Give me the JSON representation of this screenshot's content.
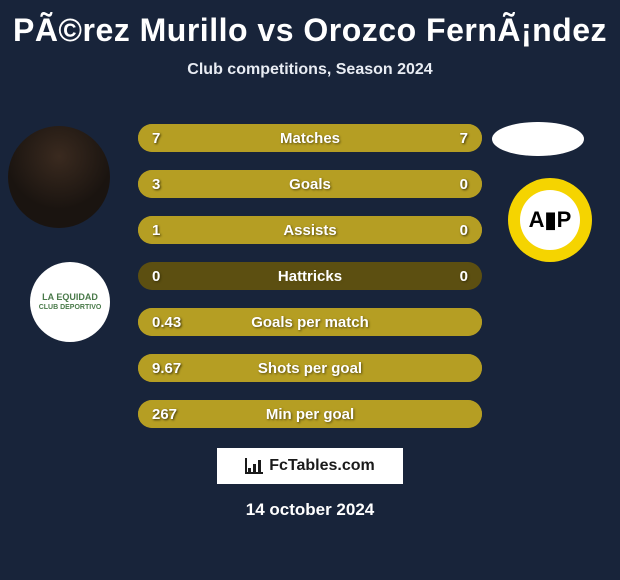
{
  "background_color": "#18243a",
  "title": "PÃ©rez Murillo vs Orozco FernÃ¡ndez",
  "subtitle": "Club competitions, Season 2024",
  "date": "14 october 2024",
  "footer_brand": "FcTables.com",
  "colors": {
    "bar_base": "#a08a1e",
    "bar_light": "#b59e23",
    "bar_dark": "#5c4f11",
    "text": "#ffffff"
  },
  "rows": [
    {
      "label": "Matches",
      "left": "7",
      "right": "7",
      "left_pct": 50,
      "right_pct": 50,
      "dual": true,
      "single_dark": false
    },
    {
      "label": "Goals",
      "left": "3",
      "right": "0",
      "left_pct": 100,
      "right_pct": 0,
      "dual": false,
      "single_dark": false
    },
    {
      "label": "Assists",
      "left": "1",
      "right": "0",
      "left_pct": 100,
      "right_pct": 0,
      "dual": false,
      "single_dark": false
    },
    {
      "label": "Hattricks",
      "left": "0",
      "right": "0",
      "left_pct": 0,
      "right_pct": 0,
      "dual": false,
      "single_dark": true
    },
    {
      "label": "Goals per match",
      "left": "0.43",
      "right": "",
      "left_pct": 100,
      "right_pct": 0,
      "dual": false,
      "single_dark": false
    },
    {
      "label": "Shots per goal",
      "left": "9.67",
      "right": "",
      "left_pct": 100,
      "right_pct": 0,
      "dual": false,
      "single_dark": false
    },
    {
      "label": "Min per goal",
      "left": "267",
      "right": "",
      "left_pct": 100,
      "right_pct": 0,
      "dual": false,
      "single_dark": false
    }
  ]
}
